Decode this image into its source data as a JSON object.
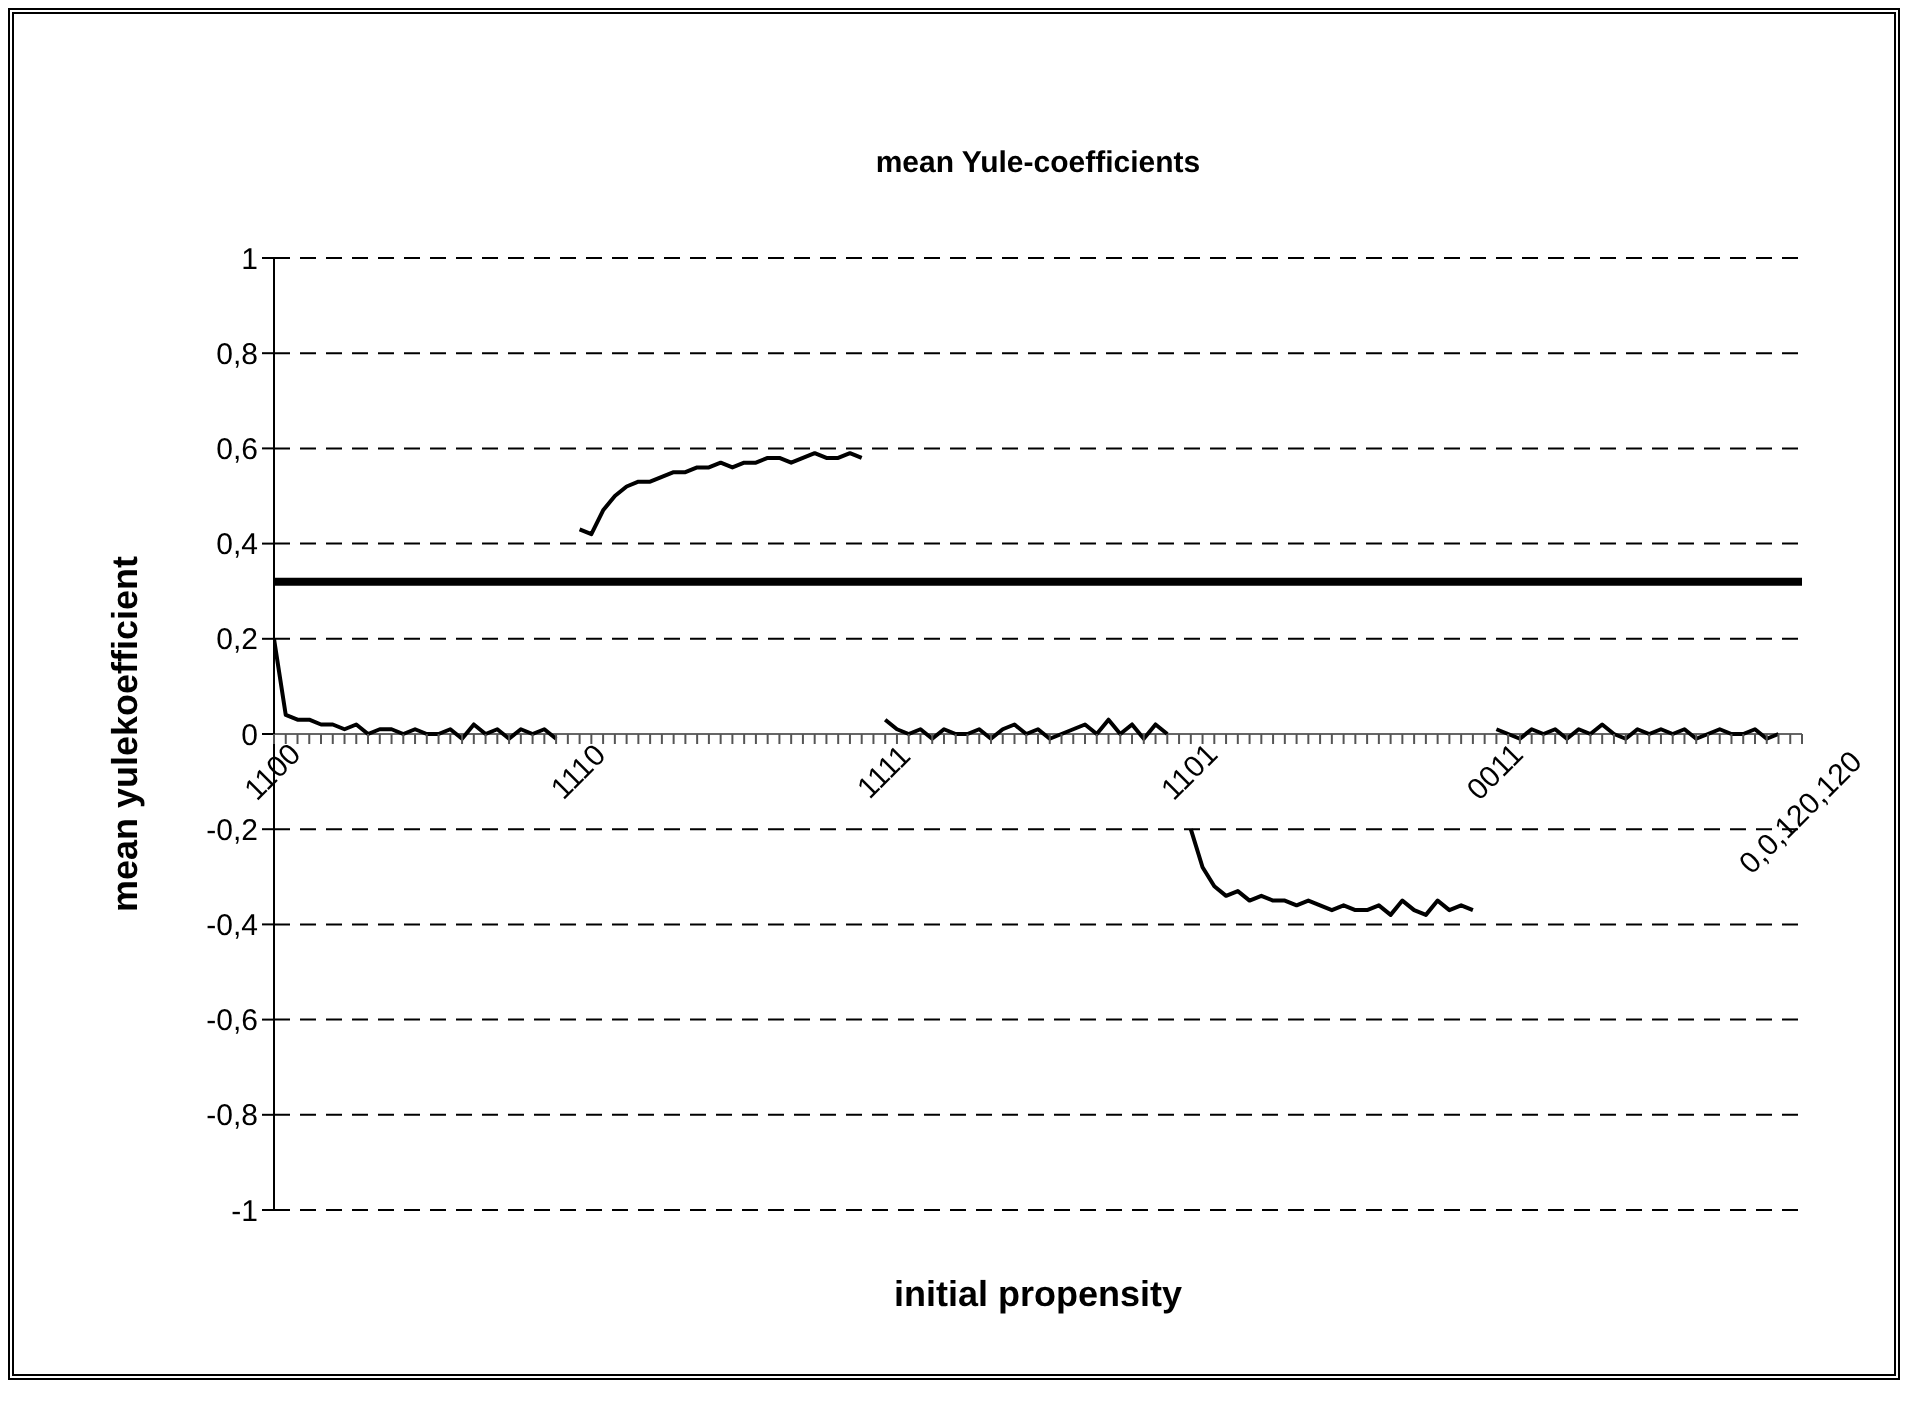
{
  "chart_data": {
    "type": "line",
    "title": "mean Yule-coefficients",
    "xlabel": "initial propensity",
    "ylabel": "mean yulekoefficient",
    "categories": [
      "1100",
      null,
      null,
      null,
      null,
      null,
      null,
      null,
      null,
      null,
      null,
      null,
      null,
      null,
      null,
      null,
      null,
      null,
      null,
      null,
      null,
      null,
      null,
      null,
      null,
      null,
      "1110",
      null,
      null,
      null,
      null,
      null,
      null,
      null,
      null,
      null,
      null,
      null,
      null,
      null,
      null,
      null,
      null,
      null,
      null,
      null,
      null,
      null,
      null,
      null,
      null,
      null,
      "1111",
      null,
      null,
      null,
      null,
      null,
      null,
      null,
      null,
      null,
      null,
      null,
      null,
      null,
      null,
      null,
      null,
      null,
      null,
      null,
      null,
      null,
      null,
      null,
      null,
      null,
      "1101",
      null,
      null,
      null,
      null,
      null,
      null,
      null,
      null,
      null,
      null,
      null,
      null,
      null,
      null,
      null,
      null,
      null,
      null,
      null,
      null,
      null,
      null,
      null,
      null,
      null,
      "0011",
      null,
      null,
      null,
      null,
      null,
      null,
      null,
      null,
      null,
      null,
      null,
      null,
      null,
      null,
      null,
      null,
      null,
      null,
      null,
      null,
      null,
      null,
      null,
      null,
      null,
      "0,0,120,120"
    ],
    "series": [
      {
        "color": "#000000",
        "values": [
          0.2,
          0.04,
          0.03,
          0.03,
          0.02,
          0.02,
          0.01,
          0.02,
          0.0,
          0.01,
          0.01,
          0.0,
          0.01,
          0.0,
          0.0,
          0.01,
          -0.01,
          0.02,
          0.0,
          0.01,
          -0.01,
          0.01,
          0.0,
          0.01,
          -0.01,
          null,
          0.43,
          0.42,
          0.47,
          0.5,
          0.52,
          0.53,
          0.53,
          0.54,
          0.55,
          0.55,
          0.56,
          0.56,
          0.57,
          0.56,
          0.57,
          0.57,
          0.58,
          0.58,
          0.57,
          0.58,
          0.59,
          0.58,
          0.58,
          0.59,
          0.58,
          null,
          0.03,
          0.01,
          0.0,
          0.01,
          -0.01,
          0.01,
          0.0,
          0.0,
          0.01,
          -0.01,
          0.01,
          0.02,
          0.0,
          0.01,
          -0.01,
          0.0,
          0.01,
          0.02,
          0.0,
          0.03,
          0.0,
          0.02,
          -0.01,
          0.02,
          0.0,
          null,
          -0.2,
          -0.28,
          -0.32,
          -0.34,
          -0.33,
          -0.35,
          -0.34,
          -0.35,
          -0.35,
          -0.36,
          -0.35,
          -0.36,
          -0.37,
          -0.36,
          -0.37,
          -0.37,
          -0.36,
          -0.38,
          -0.35,
          -0.37,
          -0.38,
          -0.35,
          -0.37,
          -0.36,
          -0.37,
          null,
          0.01,
          0.0,
          -0.01,
          0.01,
          0.0,
          0.01,
          -0.01,
          0.01,
          0.0,
          0.02,
          0.0,
          -0.01,
          0.01,
          0.0,
          0.01,
          0.0,
          0.01,
          -0.01,
          0.0,
          0.01,
          0.0,
          0.0,
          0.01,
          -0.01,
          0.0,
          null,
          null
        ]
      }
    ],
    "ylim": [
      -1,
      1
    ],
    "yticks": [
      {
        "value": -1,
        "label": "-1"
      },
      {
        "value": -0.8,
        "label": "-0,8"
      },
      {
        "value": -0.6,
        "label": "-0,6"
      },
      {
        "value": -0.4,
        "label": "-0,4"
      },
      {
        "value": -0.2,
        "label": "-0,2"
      },
      {
        "value": 0,
        "label": "0"
      },
      {
        "value": 0.2,
        "label": "0,2"
      },
      {
        "value": 0.4,
        "label": "0,4"
      },
      {
        "value": 0.6,
        "label": "0,6"
      },
      {
        "value": 0.8,
        "label": "0,8"
      },
      {
        "value": 1,
        "label": "1"
      }
    ],
    "ref_lines": [
      {
        "axis": "y",
        "value": 0.32,
        "color": "#000000"
      }
    ],
    "grid": "y",
    "marker": "none",
    "line_style": "solid"
  }
}
